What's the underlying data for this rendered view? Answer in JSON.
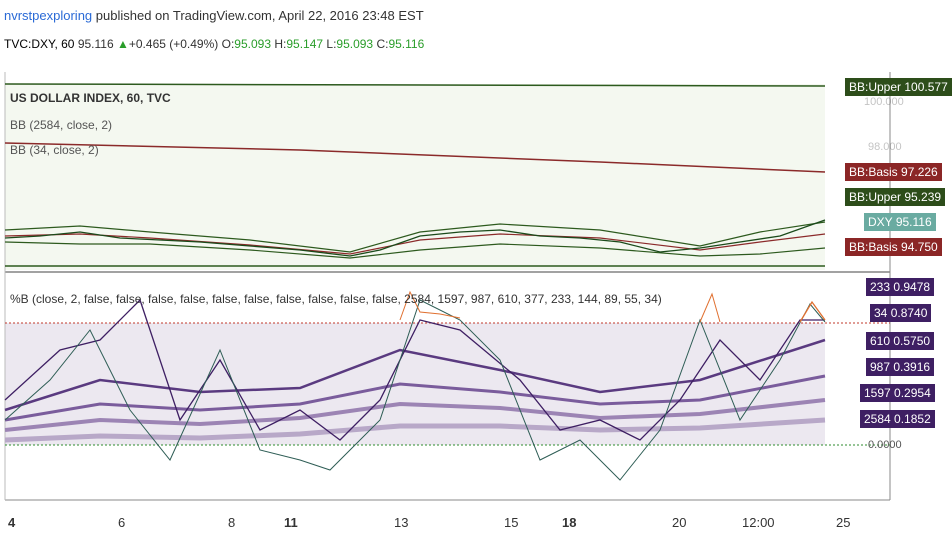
{
  "header": {
    "author": "nvrstpexploring",
    "published": "published on TradingView.com, April 22, 2016 23:48 EST"
  },
  "quote": {
    "symbol": "TVC:DXY, 60",
    "last": "95.116",
    "change": "+0.465 (+0.49%)",
    "o_label": "O:",
    "o": "95.093",
    "h_label": "H:",
    "h": "95.147",
    "l_label": "L:",
    "l": "95.093",
    "c_label": "C:",
    "c": "95.116"
  },
  "price_pane": {
    "title": "US DOLLAR INDEX, 60, TVC",
    "bb1": "BB (2584, close, 2)",
    "bb2": "BB (34, close, 2)",
    "axis": [
      "100.000",
      "98.000"
    ],
    "badges": [
      {
        "label": "BB:Upper",
        "value": "100.577",
        "color": "#2d4d1a"
      },
      {
        "label": "BB:Basis",
        "value": "97.226",
        "color": "#8b2626"
      },
      {
        "label": "BB:Upper",
        "value": "95.239",
        "color": "#2d4d1a"
      },
      {
        "label": "DXY",
        "value": "95.116",
        "color": "#6aaba1"
      },
      {
        "label": "BB:Basis",
        "value": "94.750",
        "color": "#8b2626"
      }
    ]
  },
  "pctb_pane": {
    "title": "%B (close, 2, false, false, false, false, false, false, false, false, false, false, 2584, 1597, 987, 610, 377, 233, 144, 89, 55, 34)",
    "badges": [
      {
        "label": "233",
        "value": "0.9478"
      },
      {
        "label": "34",
        "value": "0.8740"
      },
      {
        "label": "610",
        "value": "0.5750"
      },
      {
        "label": "987",
        "value": "0.3916"
      },
      {
        "label": "1597",
        "value": "0.2954"
      },
      {
        "label": "2584",
        "value": "0.1852"
      }
    ],
    "axis_zero": "0.0000"
  },
  "x_axis": [
    {
      "label": "4",
      "bold": true
    },
    {
      "label": "6",
      "bold": false
    },
    {
      "label": "8",
      "bold": false
    },
    {
      "label": "11",
      "bold": true
    },
    {
      "label": "13",
      "bold": false
    },
    {
      "label": "15",
      "bold": false
    },
    {
      "label": "18",
      "bold": true
    },
    {
      "label": "20",
      "bold": false
    },
    {
      "label": "12:00",
      "bold": false
    },
    {
      "label": "25",
      "bold": false
    }
  ],
  "colors": {
    "upper": "#2d5a1e",
    "basis": "#8b2a2a",
    "price": "#1a4a1a",
    "pctb": "#4b2a6e",
    "overbought": "#c0392b",
    "oversold": "#2e8b2e"
  }
}
